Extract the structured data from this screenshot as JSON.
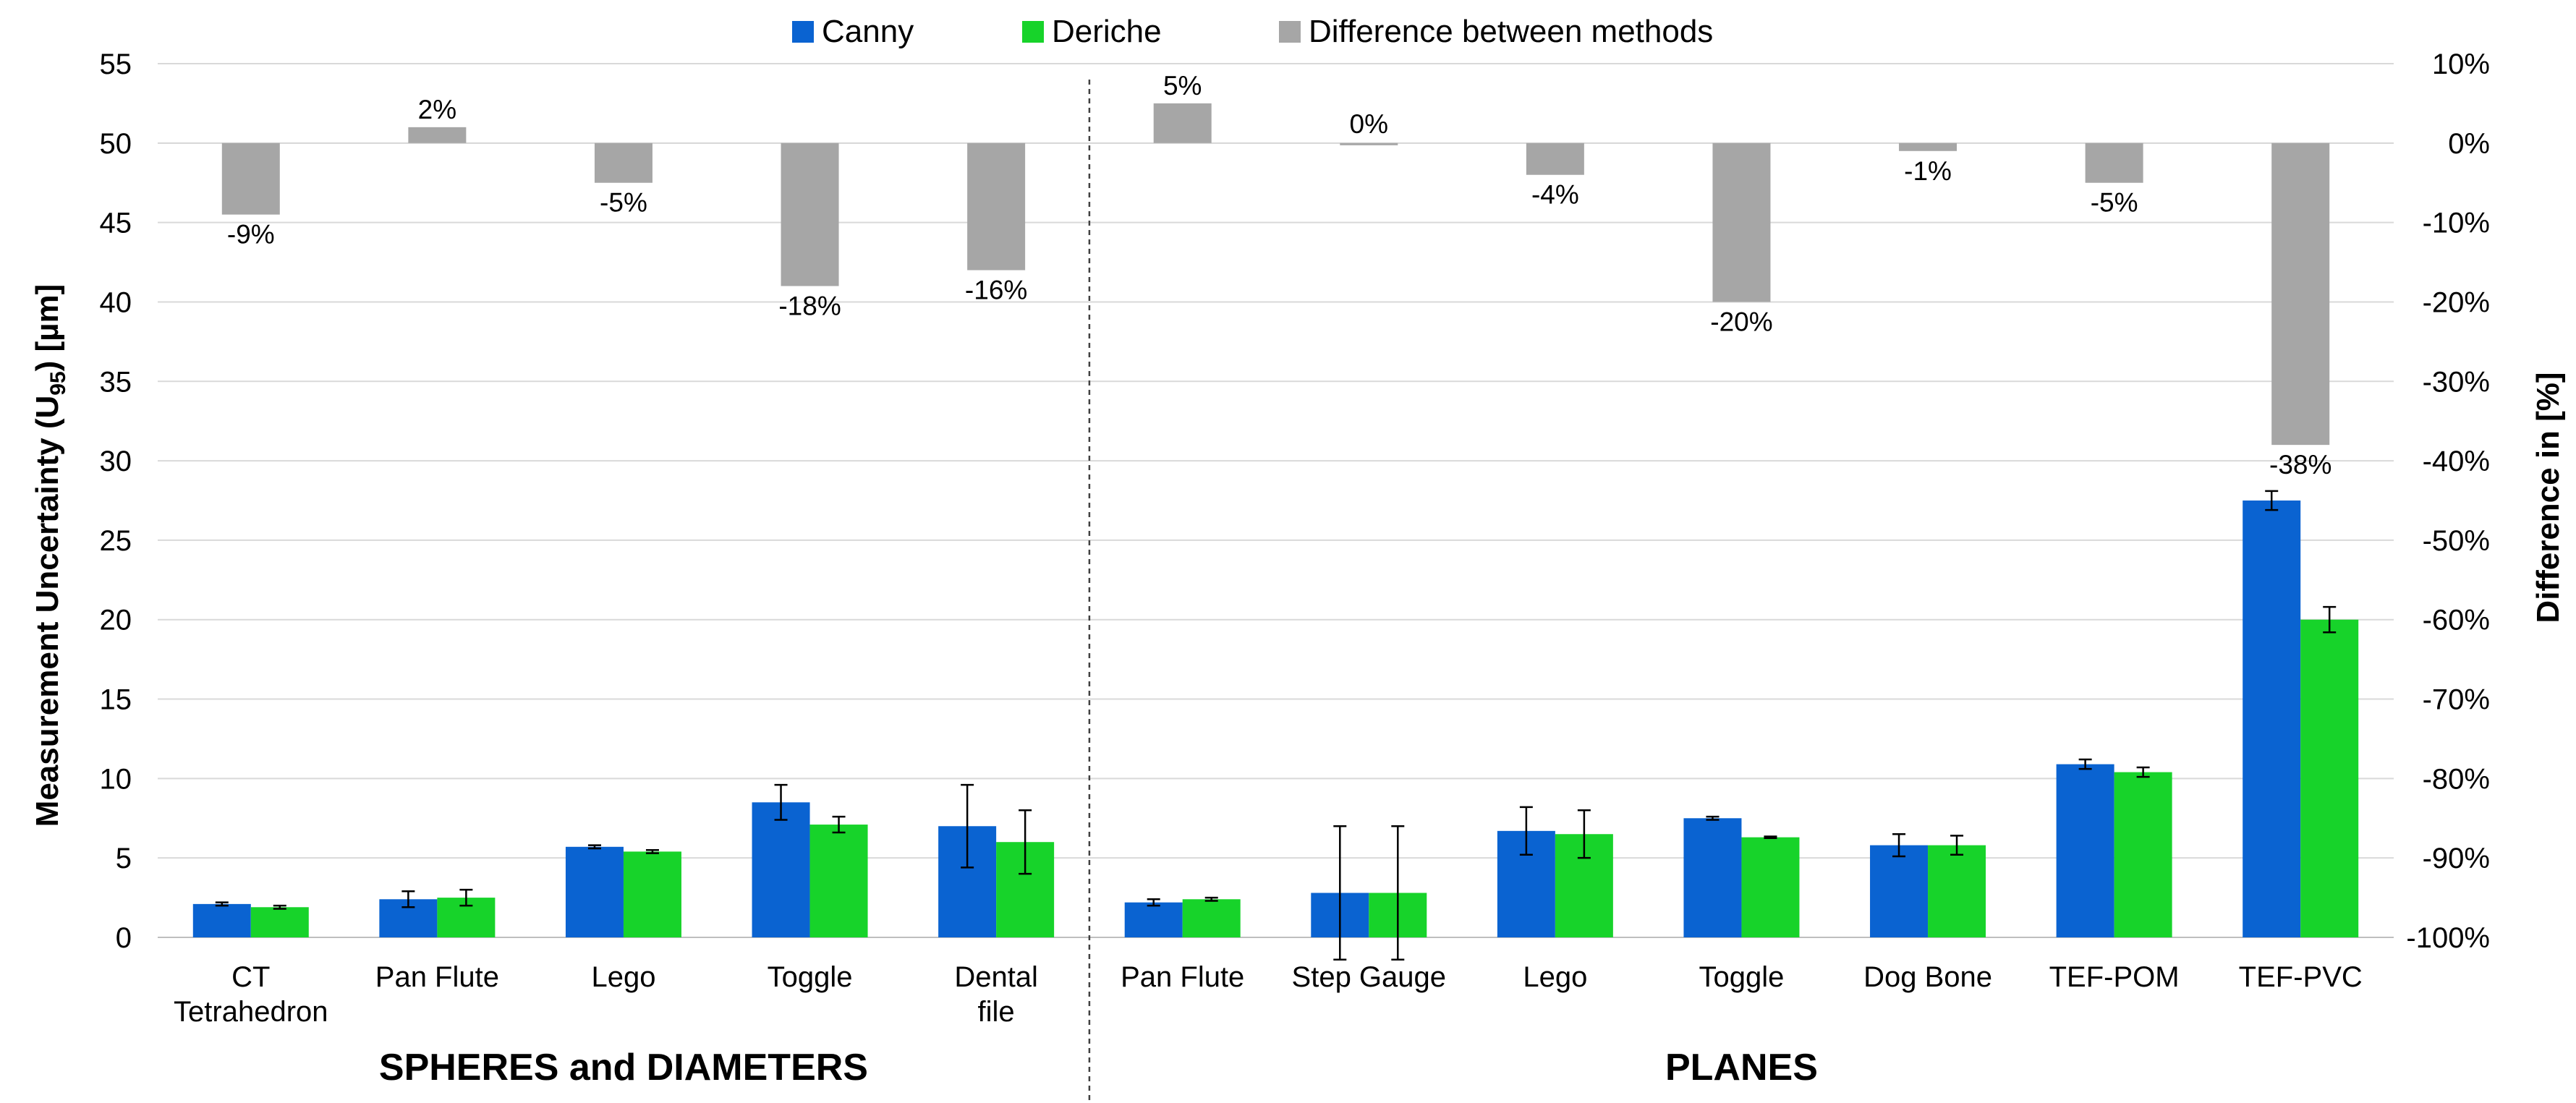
{
  "chart_data": {
    "type": "bar",
    "ylabel_parts": [
      "Measurement Uncertainty (U",
      "95",
      ") [µm]"
    ],
    "y2label": "Difference in [%]",
    "ylim": [
      0,
      55
    ],
    "yticks": [
      "0",
      "5",
      "10",
      "15",
      "20",
      "25",
      "30",
      "35",
      "40",
      "45",
      "50",
      "55"
    ],
    "y2lim": [
      -100,
      10
    ],
    "y2ticks": [
      "-100%",
      "-90%",
      "-80%",
      "-70%",
      "-60%",
      "-50%",
      "-40%",
      "-30%",
      "-20%",
      "-10%",
      "0%",
      "10%"
    ],
    "grid": true,
    "legend_position": "top",
    "groups": [
      {
        "label": "SPHERES and DIAMETERS",
        "count": 5
      },
      {
        "label": "PLANES",
        "count": 7
      }
    ],
    "categories": [
      [
        "CT",
        "Tetrahedron"
      ],
      [
        "Pan Flute"
      ],
      [
        "Lego"
      ],
      [
        "Toggle"
      ],
      [
        "Dental",
        "file"
      ],
      [
        "Pan Flute"
      ],
      [
        "Step Gauge"
      ],
      [
        "Lego"
      ],
      [
        "Toggle"
      ],
      [
        "Dog Bone"
      ],
      [
        "TEF-POM"
      ],
      [
        "TEF-PVC"
      ]
    ],
    "series": [
      {
        "name": "Canny",
        "color": "#0a63d1",
        "axis": "left",
        "values": [
          2.1,
          2.4,
          5.7,
          8.5,
          7.0,
          2.2,
          2.8,
          6.7,
          7.5,
          5.8,
          10.9,
          27.5
        ],
        "errors": [
          0.1,
          0.5,
          0.1,
          1.1,
          2.6,
          0.2,
          4.2,
          1.5,
          0.1,
          0.7,
          0.3,
          0.6
        ]
      },
      {
        "name": "Deriche",
        "color": "#17d32a",
        "axis": "left",
        "values": [
          1.9,
          2.5,
          5.4,
          7.1,
          6.0,
          2.4,
          2.8,
          6.5,
          6.3,
          5.8,
          10.4,
          20.0
        ],
        "errors": [
          0.1,
          0.5,
          0.1,
          0.5,
          2.0,
          0.1,
          4.2,
          1.5,
          0.05,
          0.6,
          0.3,
          0.8
        ]
      },
      {
        "name": "Difference between methods",
        "color": "#a6a6a6",
        "axis": "right",
        "values": [
          -9,
          2,
          -5,
          -18,
          -16,
          5,
          0,
          -4,
          -20,
          -1,
          -5,
          -38
        ],
        "labels": [
          "-9%",
          "2%",
          "-5%",
          "-18%",
          "-16%",
          "5%",
          "0%",
          "-4%",
          "-20%",
          "-1%",
          "-5%",
          "-38%"
        ]
      }
    ]
  }
}
